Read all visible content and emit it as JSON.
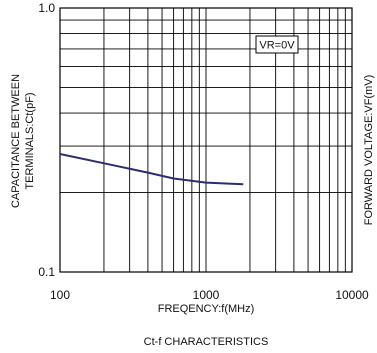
{
  "chart_data": {
    "type": "line",
    "title": "Ct-f CHARACTERISTICS",
    "xlabel": "FREQENCY:f(MHz)",
    "ylabel_lines": [
      "CAPACITANCE BETWEEN",
      "TERMINALS:Ct(pF)"
    ],
    "right_label": "FORWARD VOLTAGE:VF(mV)",
    "x_scale": "log",
    "y_scale": "log",
    "xlim": [
      100,
      10000
    ],
    "ylim": [
      0.1,
      1.0
    ],
    "x_ticks": [
      {
        "value": 100,
        "label": "100"
      },
      {
        "value": 1000,
        "label": "1000"
      },
      {
        "value": 10000,
        "label": "10000"
      }
    ],
    "y_ticks": [
      {
        "value": 1.0,
        "label": "1.0"
      },
      {
        "value": 0.1,
        "label": "0.1"
      }
    ],
    "grid": true,
    "legend": {
      "label": "VR=0V",
      "placement": "top-right"
    },
    "series": [
      {
        "color": "#2b2f6e",
        "x": [
          100,
          200,
          400,
          600,
          1000,
          1500,
          1800
        ],
        "y": [
          0.28,
          0.258,
          0.238,
          0.226,
          0.218,
          0.216,
          0.215
        ]
      }
    ]
  }
}
